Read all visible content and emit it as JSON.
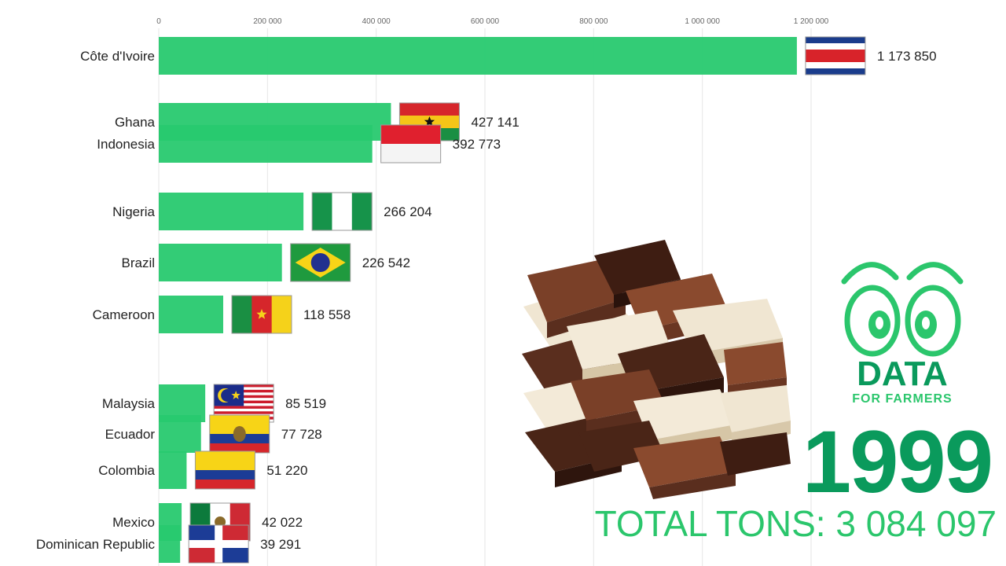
{
  "chart_data": {
    "type": "bar",
    "orientation": "horizontal",
    "title": "",
    "xlabel": "",
    "ylabel": "",
    "xlim": [
      0,
      1200000
    ],
    "ticks": [
      {
        "value": 0,
        "label": "0"
      },
      {
        "value": 200000,
        "label": "200 000"
      },
      {
        "value": 400000,
        "label": "400 000"
      },
      {
        "value": 600000,
        "label": "600 000"
      },
      {
        "value": 800000,
        "label": "800 000"
      },
      {
        "value": 1000000,
        "label": "1 000 000"
      },
      {
        "value": 1200000,
        "label": "1 200 000"
      }
    ],
    "grid": true,
    "bar_color": "#28c96f",
    "bars": [
      {
        "category": "Côte d'Ivoire",
        "value": 1173850,
        "value_label": "1 173 850",
        "flag": "costa-rica-flag"
      },
      {
        "category": "Ghana",
        "value": 427141,
        "value_label": "427 141",
        "flag": "ghana-flag"
      },
      {
        "category": "Indonesia",
        "value": 392773,
        "value_label": "392 773",
        "flag": "indonesia-flag"
      },
      {
        "category": "Nigeria",
        "value": 266204,
        "value_label": "266 204",
        "flag": "nigeria-flag"
      },
      {
        "category": "Brazil",
        "value": 226542,
        "value_label": "226 542",
        "flag": "brazil-flag"
      },
      {
        "category": "Cameroon",
        "value": 118558,
        "value_label": "118 558",
        "flag": "cameroon-flag"
      },
      {
        "category": "Malaysia",
        "value": 85519,
        "value_label": "85 519",
        "flag": "malaysia-flag"
      },
      {
        "category": "Ecuador",
        "value": 77728,
        "value_label": "77 728",
        "flag": "ecuador-flag"
      },
      {
        "category": "Colombia",
        "value": 51220,
        "value_label": "51 220",
        "flag": "colombia-flag"
      },
      {
        "category": "Mexico",
        "value": 42022,
        "value_label": "42 022",
        "flag": "mexico-flag"
      },
      {
        "category": "Dominican Republic",
        "value": 39291,
        "value_label": "39 291",
        "flag": "dominican-republic-flag"
      }
    ]
  },
  "year": "1999",
  "total_text": "TOTAL TONS: 3 084 097",
  "logo": {
    "line1": "DATA",
    "line2": "FOR FARMERS",
    "icon": "eyes-logo-icon",
    "color": "#0a9a5c",
    "accent": "#2bc66c"
  },
  "image": {
    "icon": "chocolate-bars-image"
  }
}
